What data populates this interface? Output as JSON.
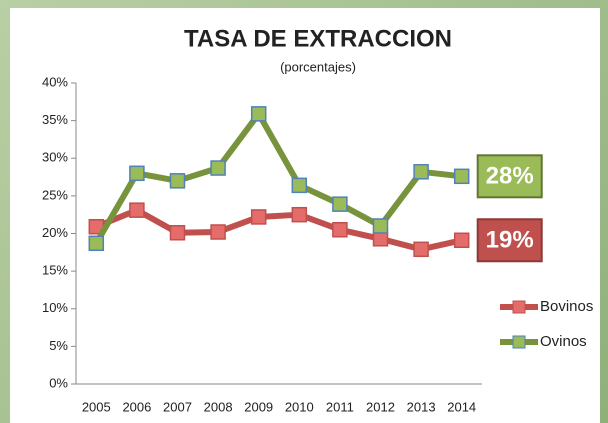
{
  "chart_data": {
    "type": "line",
    "title": "TASA DE EXTRACCION",
    "subtitle": "(porcentajes)",
    "categories": [
      "2005",
      "2006",
      "2007",
      "2008",
      "2009",
      "2010",
      "2011",
      "2012",
      "2013",
      "2014"
    ],
    "series": [
      {
        "name": "Bovinos",
        "color": "#c0504d",
        "values": [
          20.9,
          23.1,
          20.1,
          20.2,
          22.2,
          22.5,
          20.5,
          19.3,
          17.9,
          19.1
        ],
        "value_labels": [
          null,
          null,
          null,
          null,
          null,
          null,
          null,
          null,
          null,
          "19%"
        ]
      },
      {
        "name": "Ovinos",
        "color": "#77933c",
        "values": [
          18.7,
          28.0,
          27.0,
          28.7,
          35.9,
          26.4,
          23.9,
          21.0,
          28.2,
          27.6
        ],
        "value_labels": [
          null,
          null,
          null,
          null,
          null,
          null,
          null,
          null,
          null,
          "28%"
        ]
      }
    ],
    "ylim": [
      0,
      40
    ],
    "yticks": [
      {
        "value": 0,
        "label": "0%"
      },
      {
        "value": 5,
        "label": "5%"
      },
      {
        "value": 10,
        "label": "10%"
      },
      {
        "value": 15,
        "label": "15%"
      },
      {
        "value": 20,
        "label": "20%"
      },
      {
        "value": 25,
        "label": "25%"
      },
      {
        "value": 30,
        "label": "30%"
      },
      {
        "value": 35,
        "label": "35%"
      },
      {
        "value": 40,
        "label": "40%"
      }
    ],
    "legend": "right"
  }
}
